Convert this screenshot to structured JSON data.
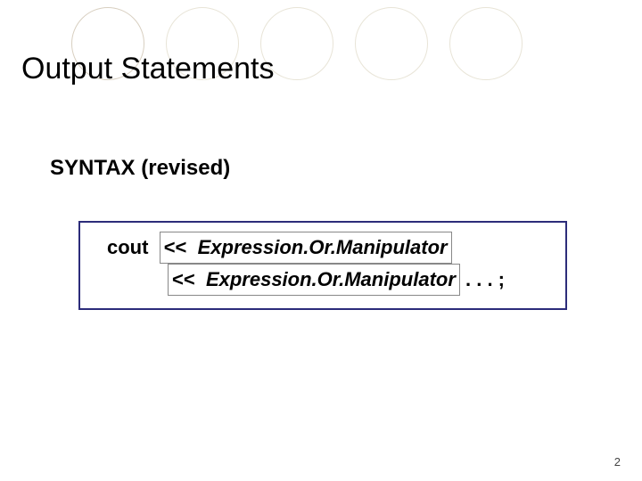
{
  "title": "Output Statements",
  "subtitle": "SYNTAX (revised)",
  "syntax": {
    "keyword": "cout",
    "operator1": "<<",
    "expr1": "Expression.Or.Manipulator",
    "operator2": "<<",
    "expr2": "Expression.Or.Manipulator",
    "tail": " .  .  . ;"
  },
  "pageNumber": "2",
  "decor": {
    "circleColors": [
      "#d8cfc0",
      "#e8e4d7",
      "#e8e4d7",
      "#e8e4d7",
      "#e8e4d7"
    ]
  },
  "colors": {
    "boxBorder": "#2c2c7a",
    "text": "#000000",
    "background": "#ffffff"
  }
}
